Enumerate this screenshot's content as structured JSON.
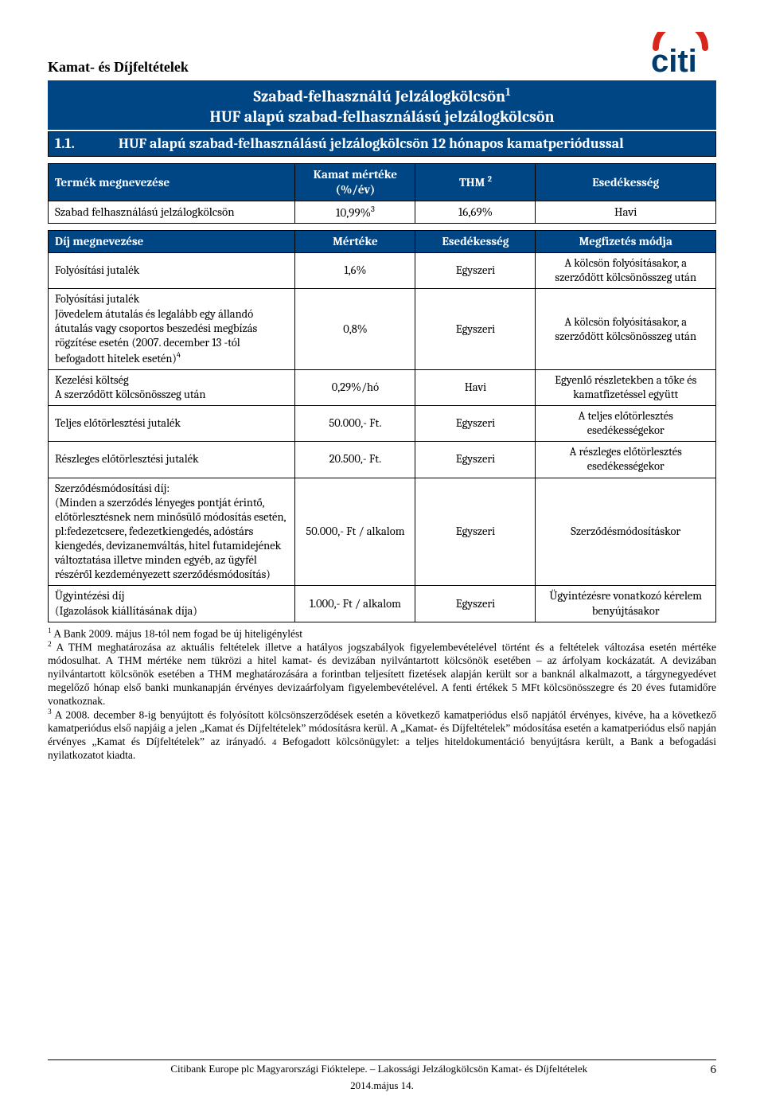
{
  "colors": {
    "header_bg": "#004685",
    "header_fg": "#ffffff",
    "text": "#000000",
    "border": "#000000",
    "logo_arc": "#d9261c",
    "logo_text": "#003b70"
  },
  "header": {
    "page_title": "Kamat- és Díjfeltételek",
    "logo_text": "citi"
  },
  "section": {
    "title_line1": "Szabad-felhasználú Jelzálogkölcsön",
    "title_sup": "1",
    "title_line2": "HUF alapú szabad-felhasználású jelzálogkölcsön",
    "sub_num": "1.1.",
    "sub_text": "HUF alapú szabad-felhasználású jelzálogkölcsön 12 hónapos kamatperiódussal"
  },
  "table1": {
    "headers": {
      "name": "Termék megnevezése",
      "rate": "Kamat mértéke (%/év)",
      "thm": "THM ",
      "thm_sup": "2",
      "due": "Esedékesség"
    },
    "row": {
      "name": "Szabad felhasználású jelzálogkölcsön",
      "rate": "10,99%",
      "rate_sup": "3",
      "thm": "16,69%",
      "due": "Havi"
    }
  },
  "table2": {
    "headers": {
      "name": "Díj megnevezése",
      "val": "Mértéke",
      "freq": "Esedékesség",
      "pay": "Megfizetés módja"
    },
    "rows": [
      {
        "name": "Folyósítási jutalék",
        "val": "1,6%",
        "freq": "Egyszeri",
        "pay": "A kölcsön folyósításakor, a szerződött kölcsönösszeg után"
      },
      {
        "name": "Folyósítási jutalék\nJövedelem átutalás és legalább egy állandó átutalás vagy csoportos beszedési megbízás rögzítése esetén (2007. december 13 -tól befogadott hitelek esetén)",
        "name_sup": "4",
        "val": "0,8%",
        "freq": "Egyszeri",
        "pay": "A kölcsön folyósításakor, a szerződött kölcsönösszeg után"
      },
      {
        "name": "Kezelési költség\nA szerződött kölcsönösszeg után",
        "val": "0,29%/hó",
        "freq": "Havi",
        "pay": "Egyenlő részletekben a tőke és kamatfizetéssel együtt"
      },
      {
        "name": "Teljes előtörlesztési jutalék",
        "val": "50.000,- Ft.",
        "freq": "Egyszeri",
        "pay": "A teljes előtörlesztés esedékességekor"
      },
      {
        "name": "Részleges előtörlesztési jutalék",
        "val": "20.500,- Ft.",
        "freq": "Egyszeri",
        "pay": "A részleges előtörlesztés esedékességekor"
      },
      {
        "name": "Szerződésmódosítási díj:\n(Minden a szerződés lényeges pontját érintő, előtörlesztésnek nem minősülő módosítás esetén, pl:fedezetcsere, fedezetkiengedés, adóstárs kiengedés, devizanemváltás, hitel futamidejének változtatása illetve minden egyéb, az ügyfél részéről kezdeményezett szerződésmódosítás)",
        "val": "50.000,- Ft / alkalom",
        "freq": "Egyszeri",
        "pay": "Szerződésmódosításkor"
      },
      {
        "name": "Ügyintézési díj\n(Igazolások kiállításának díja)",
        "val": "1.000,- Ft / alkalom",
        "freq": "Egyszeri",
        "pay": "Ügyintézésre vonatkozó kérelem benyújtásakor"
      }
    ]
  },
  "footnotes": {
    "f1_sup": "1",
    "f1": " A Bank 2009. május 18-tól nem fogad be új hiteligénylést",
    "f2_sup": "2",
    "f2": " A THM meghatározása az aktuális feltételek illetve a hatályos jogszabályok figyelembevételével történt és a feltételek változása esetén mértéke módosulhat. A THM mértéke nem tükrözi a hitel kamat- és devizában nyilvántartott kölcsönök esetében – az árfolyam kockázatát. A devizában nyilvántartott kölcsönök esetében a THM meghatározására a forintban teljesített fizetések alapján került sor a banknál alkalmazott, a tárgynegyedévet megelőző hónap első banki munkanapján érvényes devizaárfolyam figyelembevételével. A fenti értékek 5 MFt kölcsönösszegre és 20 éves futamidőre vonatkoznak.",
    "f3_sup": "3",
    "f3": " A 2008. december 8-ig benyújtott és folyósított kölcsönszerződések esetén a következő kamatperiódus első napjától érvényes, kivéve, ha a következő kamatperiódus első napjáig a jelen „Kamat és Díjfeltételek” módosításra kerül. A „Kamat- és Díjfeltételek” módosítása esetén a kamatperiódus első napján érvényes „Kamat és Díjfeltételek” az irányadó. ",
    "f4_sup": "4",
    "f4": " Befogadott kölcsönügylet: a teljes hiteldokumentáció benyújtásra került, a Bank a befogadási nyilatkozatot kiadta."
  },
  "footer": {
    "center": "Citibank Europe plc Magyarországi Fióktelepe. – Lakossági Jelzálogkölcsön Kamat- és Díjfeltételek",
    "date": "2014.május 14.",
    "page": "6"
  }
}
